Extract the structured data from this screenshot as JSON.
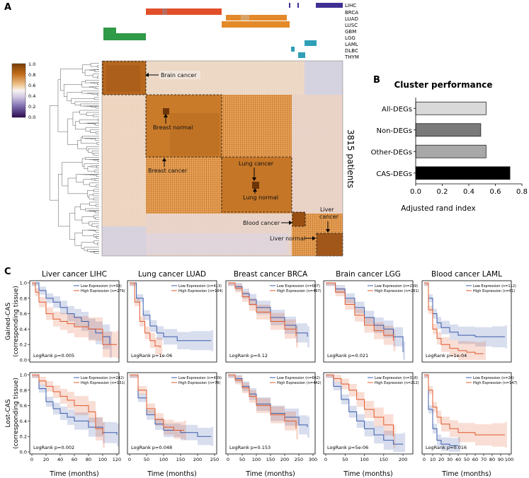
{
  "panels": {
    "a": "A",
    "b": "B",
    "c": "C"
  },
  "legend_colors": {
    "LIHC": "#3f2f93",
    "BRCA": "#e14f2a",
    "LUAD": "#e4892a",
    "LUSC": "#e8a246",
    "GBM": "#2f9a47",
    "LGG": "#47ad5a",
    "LAML": "#2f9fb6",
    "DLBC": "#45b0c8",
    "THYM": "#3aa5b8"
  },
  "heatmap": {
    "cancer_types": [
      "LIHC",
      "BRCA",
      "LUAD",
      "LUSC",
      "GBM",
      "LGG",
      "LAML",
      "DLBC",
      "THYM"
    ],
    "patients_label": "3815 patients",
    "colorbar_ticks": [
      "1.0",
      "0.8",
      "0.6",
      "0.4",
      "0.2",
      "0.0"
    ],
    "annotations": {
      "brain_cancer": "Brain cancer",
      "breast_normal": "Breast normal",
      "breast_cancer": "Breast cancer",
      "lung_cancer": "Lung cancer",
      "lung_normal": "Lung normal",
      "blood_cancer": "Blood cancer",
      "liver_cancer_line1": "Liver",
      "liver_cancer_line2": "cancer",
      "liver_normal": "Liver normal"
    }
  },
  "chart_data": [
    {
      "type": "bar",
      "title": "Cluster performance",
      "categories": [
        "All-DEGs",
        "Non-DEGs",
        "Other-DEGs",
        "CAS-DEGs"
      ],
      "values": [
        0.53,
        0.49,
        0.53,
        0.71
      ],
      "colors": [
        "#d9d9d9",
        "#7a7a7a",
        "#a8a8a8",
        "#000000"
      ],
      "xlabel": "Adjusted rand index",
      "xlim": [
        0,
        0.8
      ],
      "xticks": [
        "0.0",
        "0.2",
        "0.4",
        "0.6",
        "0.8"
      ]
    },
    {
      "type": "line",
      "kind": "kaplan-meier",
      "row_labels": [
        {
          "line1": "Gained-CAS",
          "line2": "(corresponding tissue)"
        },
        {
          "line1": "Lost-CAS",
          "line2": "(corresponding tissue)"
        }
      ],
      "y_ticks": [
        "0.0",
        "0.2",
        "0.4",
        "0.6",
        "0.8",
        "1.0"
      ],
      "xlabel": "Time (months)",
      "low_color": "#3b5bab",
      "high_color": "#e1592b",
      "columns": [
        {
          "title": "Liver cancer LIHC",
          "x_max": 120,
          "x_ticks": [
            "0",
            "20",
            "40",
            "60",
            "80",
            "100",
            "120"
          ],
          "rows": [
            {
              "low_label": "Low Expression (n=93)",
              "high_label": "High Expression (n=279)",
              "logrank": "LogRank p=0.005",
              "low_times": [
                0,
                10,
                20,
                30,
                40,
                50,
                60,
                70,
                80,
                90,
                100,
                110
              ],
              "low_surv": [
                1.0,
                0.9,
                0.8,
                0.75,
                0.68,
                0.6,
                0.55,
                0.5,
                0.4,
                0.35,
                0.3,
                0.2
              ],
              "high_times": [
                0,
                5,
                10,
                20,
                30,
                40,
                50,
                60,
                80,
                100,
                120
              ],
              "high_surv": [
                1.0,
                0.88,
                0.75,
                0.6,
                0.53,
                0.5,
                0.47,
                0.43,
                0.4,
                0.2,
                0.2
              ]
            },
            {
              "low_label": "Low Expression (n=242)",
              "high_label": "High Expression (n=131)",
              "logrank": "LogRank p=0.002",
              "low_times": [
                0,
                10,
                20,
                30,
                40,
                50,
                60,
                80,
                100,
                120
              ],
              "low_surv": [
                1.0,
                0.82,
                0.65,
                0.56,
                0.5,
                0.45,
                0.4,
                0.32,
                0.25,
                0.22
              ],
              "high_times": [
                0,
                10,
                20,
                30,
                40,
                50,
                60,
                80,
                90,
                100
              ],
              "high_surv": [
                1.0,
                0.92,
                0.85,
                0.78,
                0.72,
                0.67,
                0.6,
                0.52,
                0.3,
                0.22
              ]
            }
          ]
        },
        {
          "title": "Lung cancer LUAD",
          "x_max": 250,
          "x_ticks": [
            "0",
            "50",
            "100",
            "150",
            "200",
            "250"
          ],
          "rows": [
            {
              "low_label": "Low Expression (n=413)",
              "high_label": "High Expression (n=104)",
              "logrank": "LogRank p=1e-06",
              "low_times": [
                0,
                20,
                40,
                60,
                80,
                100,
                140,
                180,
                240
              ],
              "low_surv": [
                1.0,
                0.8,
                0.58,
                0.44,
                0.35,
                0.3,
                0.25,
                0.25,
                0.25
              ],
              "high_times": [
                0,
                15,
                30,
                45,
                60,
                75,
                90
              ],
              "high_surv": [
                1.0,
                0.75,
                0.5,
                0.35,
                0.25,
                0.18,
                0.16
              ]
            },
            {
              "low_label": "Low Expression (n=439)",
              "high_label": "High Expression (n=78)",
              "logrank": "LogRank p=0.048",
              "low_times": [
                0,
                25,
                50,
                75,
                100,
                150,
                200,
                240
              ],
              "low_surv": [
                1.0,
                0.7,
                0.48,
                0.36,
                0.28,
                0.25,
                0.2,
                0.2
              ],
              "high_times": [
                0,
                25,
                50,
                75,
                100,
                130,
                160
              ],
              "high_surv": [
                1.0,
                0.8,
                0.56,
                0.42,
                0.32,
                0.28,
                0.28
              ]
            }
          ]
        },
        {
          "title": "Breast cancer BRCA",
          "x_max": 300,
          "x_ticks": [
            "0",
            "50",
            "100",
            "150",
            "200",
            "250",
            "300"
          ],
          "rows": [
            {
              "low_label": "Low Expression (n=607)",
              "high_label": "High Expression (n=497)",
              "logrank": "LogRank p=0.12",
              "low_times": [
                0,
                25,
                50,
                75,
                100,
                150,
                200,
                240,
                280
              ],
              "low_surv": [
                1.0,
                0.95,
                0.86,
                0.78,
                0.68,
                0.55,
                0.45,
                0.35,
                0.3
              ],
              "high_times": [
                0,
                25,
                50,
                75,
                100,
                150,
                200,
                240
              ],
              "high_surv": [
                1.0,
                0.93,
                0.82,
                0.72,
                0.62,
                0.5,
                0.4,
                0.3
              ]
            },
            {
              "low_label": "Low Expression (n=662)",
              "high_label": "High Expression (n=442)",
              "logrank": "LogRank p=0.153",
              "low_times": [
                0,
                25,
                50,
                75,
                100,
                150,
                200,
                250,
                280
              ],
              "low_surv": [
                1.0,
                0.95,
                0.85,
                0.75,
                0.62,
                0.5,
                0.45,
                0.35,
                0.32
              ],
              "high_times": [
                0,
                25,
                50,
                75,
                100,
                150,
                200,
                240
              ],
              "high_surv": [
                1.0,
                0.93,
                0.83,
                0.72,
                0.6,
                0.48,
                0.4,
                0.3
              ]
            }
          ]
        },
        {
          "title": "Brain cancer LGG",
          "x_max": 220,
          "x_ticks": [
            "0",
            "50",
            "100",
            "150",
            "200"
          ],
          "rows": [
            {
              "low_label": "Low Expression (n=239)",
              "high_label": "High Expression (n=291)",
              "logrank": "LogRank p=0.021",
              "low_times": [
                0,
                25,
                50,
                75,
                100,
                125,
                150,
                175,
                200
              ],
              "low_surv": [
                1.0,
                0.92,
                0.8,
                0.68,
                0.55,
                0.45,
                0.4,
                0.3,
                0.1
              ],
              "high_times": [
                0,
                25,
                50,
                75,
                100,
                125,
                150,
                175
              ],
              "high_surv": [
                1.0,
                0.88,
                0.72,
                0.58,
                0.45,
                0.38,
                0.32,
                0.25
              ]
            },
            {
              "low_label": "Low Expression (n=318)",
              "high_label": "High Expression (n=212)",
              "logrank": "LogRank p=5e-06",
              "low_times": [
                0,
                20,
                40,
                60,
                80,
                100,
                125,
                150,
                175,
                200
              ],
              "low_surv": [
                1.0,
                0.85,
                0.68,
                0.52,
                0.4,
                0.3,
                0.22,
                0.15,
                0.1,
                0.1
              ],
              "high_times": [
                0,
                20,
                40,
                60,
                80,
                100,
                125,
                150,
                175
              ],
              "high_surv": [
                1.0,
                0.95,
                0.88,
                0.8,
                0.68,
                0.55,
                0.45,
                0.35,
                0.2
              ]
            }
          ]
        },
        {
          "title": "Blood cancer LAML",
          "x_max": 100,
          "x_ticks": [
            "0",
            "10",
            "20",
            "30",
            "40",
            "50",
            "60",
            "70",
            "80",
            "90",
            "100"
          ],
          "rows": [
            {
              "low_label": "Low Expression (n=112)",
              "high_label": "High Expression (n=61)",
              "logrank": "LogRank p=1e-04",
              "low_times": [
                0,
                5,
                10,
                15,
                20,
                30,
                40,
                60,
                80,
                95
              ],
              "low_surv": [
                1.0,
                0.8,
                0.6,
                0.48,
                0.42,
                0.36,
                0.32,
                0.3,
                0.3,
                0.3
              ],
              "high_times": [
                0,
                5,
                10,
                15,
                20,
                30,
                40,
                50,
                60,
                70
              ],
              "high_surv": [
                1.0,
                0.65,
                0.4,
                0.28,
                0.2,
                0.15,
                0.12,
                0.1,
                0.08,
                0.08
              ]
            },
            {
              "low_label": "Low Expression (n=26)",
              "high_label": "High Expression (n=147)",
              "logrank": "LogRank p=0.016",
              "low_times": [
                0,
                5,
                10,
                15,
                20,
                30,
                40
              ],
              "low_surv": [
                1.0,
                0.55,
                0.3,
                0.15,
                0.1,
                0.08,
                0.08
              ],
              "high_times": [
                0,
                5,
                10,
                15,
                20,
                30,
                40,
                60,
                80,
                95
              ],
              "high_surv": [
                1.0,
                0.8,
                0.58,
                0.45,
                0.36,
                0.3,
                0.25,
                0.22,
                0.22,
                0.22
              ]
            }
          ]
        }
      ]
    }
  ]
}
